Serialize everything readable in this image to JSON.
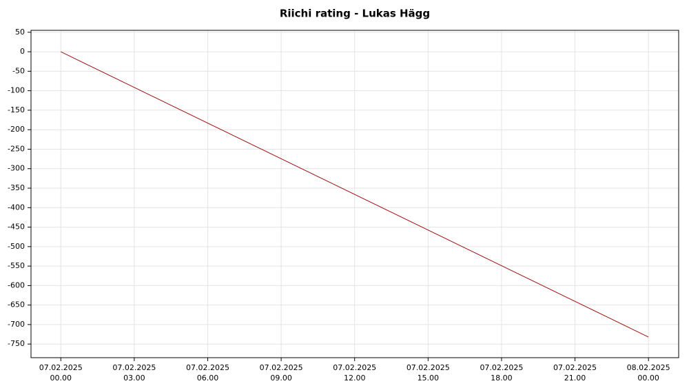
{
  "chart_data": {
    "type": "line",
    "title": "Riichi rating - Lukas Hägg",
    "x": [
      "07.02.2025 00.00",
      "08.02.2025 00.00"
    ],
    "series": [
      {
        "name": "Riichi rating",
        "color": "#a01010",
        "values": [
          0,
          -732
        ]
      }
    ],
    "xlim": [
      "06.02.2025 22.47",
      "08.02.2025 01.14"
    ],
    "xticks": [
      "07.02.2025 00.00",
      "07.02.2025 03.00",
      "07.02.2025 06.00",
      "07.02.2025 09.00",
      "07.02.2025 12.00",
      "07.02.2025 15.00",
      "07.02.2025 18.00",
      "07.02.2025 21.00",
      "08.02.2025 00.00"
    ],
    "ylim": [
      -785,
      55
    ],
    "yticks": [
      50,
      0,
      -50,
      -100,
      -150,
      -200,
      -250,
      -300,
      -350,
      -400,
      -450,
      -500,
      -550,
      -600,
      -650,
      -700,
      -750
    ],
    "grid": true
  }
}
